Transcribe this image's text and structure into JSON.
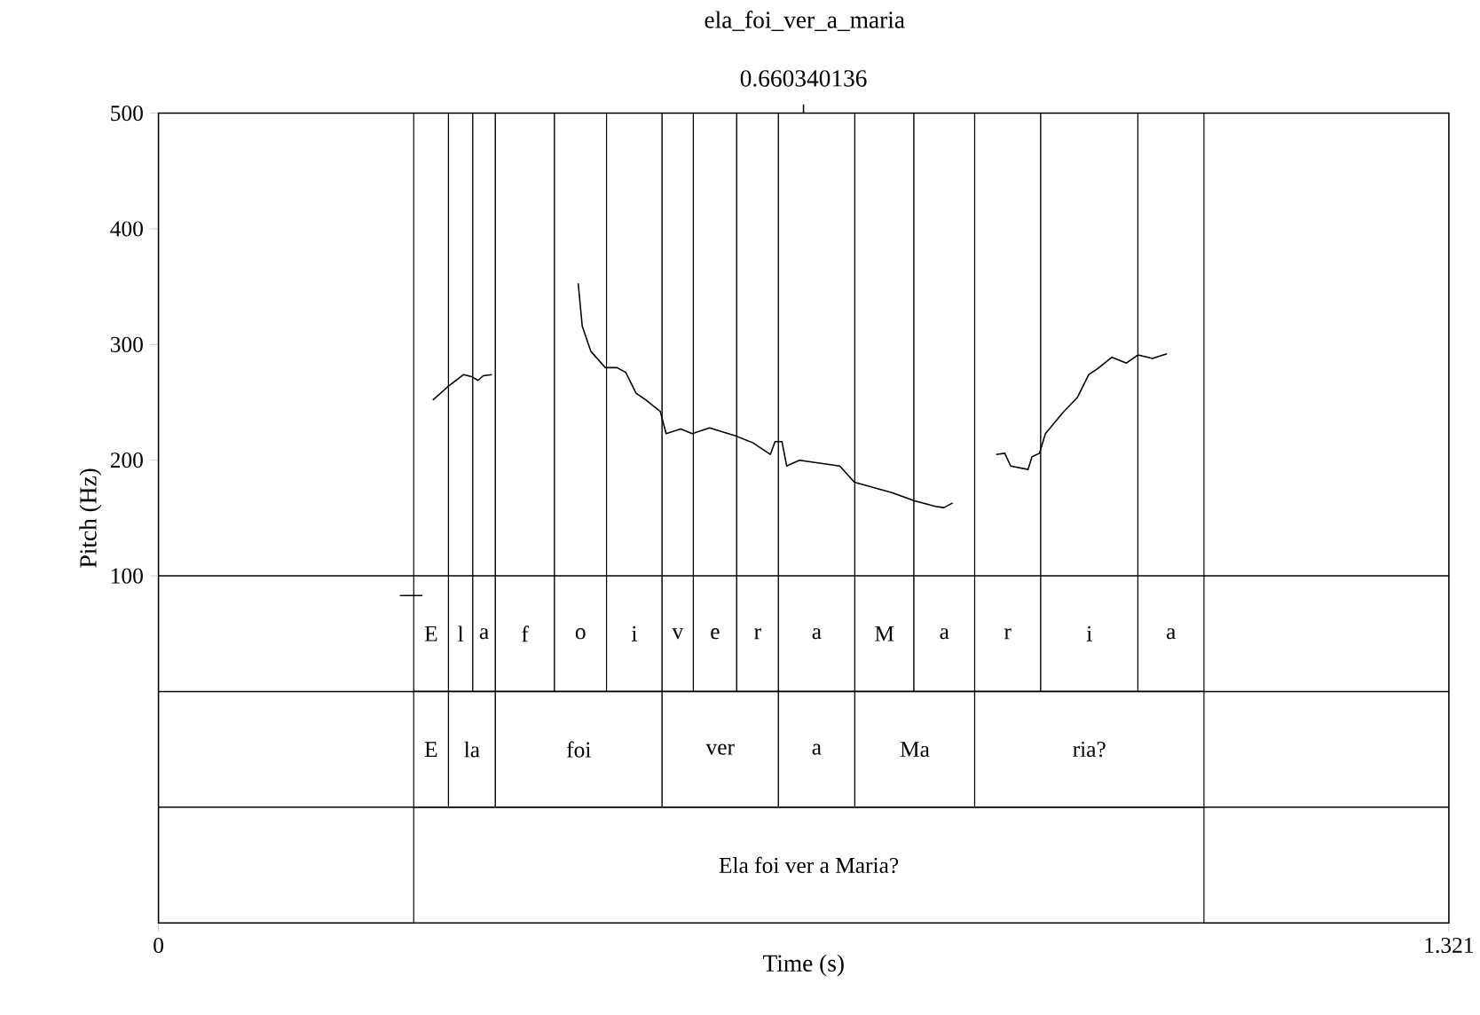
{
  "chart_data": {
    "type": "line",
    "title": "ela_foi_ver_a_maria",
    "xlabel": "Time (s)",
    "ylabel": "Pitch (Hz)",
    "xlim": [
      0,
      1.321
    ],
    "xticks": [
      0,
      1.321
    ],
    "ylim": [
      -200,
      500
    ],
    "yticks": [
      100,
      200,
      300,
      400,
      500
    ],
    "series": [
      {
        "color": "#000000",
        "line_style": "solid",
        "x": [
          0.2471,
          0.2702,
          0.275,
          0.2809,
          0.2969,
          0.3124,
          0.3213,
          0.3271,
          0.3325,
          0.3414,
          0.36,
          0.4297,
          0.4338,
          0.4427,
          0.4575,
          0.4694,
          0.4783,
          0.4889,
          0.4991,
          0.5138,
          0.5197,
          0.5347,
          0.5464,
          0.5641,
          0.5908,
          0.6086,
          0.6264,
          0.6312,
          0.6383,
          0.6431,
          0.6561,
          0.6975,
          0.7124,
          0.7508,
          0.7734,
          0.7953,
          0.8041,
          0.813,
          0.83,
          0.8575,
          0.8664,
          0.8724,
          0.8902,
          0.8943,
          0.9019,
          0.908,
          0.9257,
          0.9405,
          0.9524,
          0.9613,
          0.9761,
          0.9909,
          1.0027,
          1.0175,
          1.0324
        ],
        "values": [
          83,
          83,
          null,
          252,
          264,
          274,
          272,
          269,
          273,
          274,
          null,
          353,
          316,
          294,
          280,
          280,
          276,
          258,
          252,
          242,
          223,
          227,
          223,
          228,
          221,
          215,
          205,
          216,
          216,
          195,
          200,
          195,
          181,
          172,
          165,
          160,
          159,
          163,
          null,
          205,
          206,
          195,
          192,
          203,
          206,
          223,
          241,
          254,
          274,
          279,
          289,
          284,
          291,
          288,
          292
        ]
      }
    ],
    "ref_lines": [
      {
        "axis": "y",
        "value": 100
      },
      {
        "axis": "y",
        "value": 0
      },
      {
        "axis": "y",
        "value": -100
      },
      {
        "axis": "x",
        "value": 0.660340136,
        "label": "0.660340136"
      }
    ],
    "bands": [
      {
        "axis": "x",
        "from": 0.2613,
        "to": 0.2969,
        "label": "E",
        "color": "#ffffff"
      },
      {
        "axis": "x",
        "from": 0.2969,
        "to": 0.3218,
        "label": "l",
        "color": "#ffffff"
      },
      {
        "axis": "x",
        "from": 0.3218,
        "to": 0.3449,
        "label": "a",
        "color": "#ffffff"
      },
      {
        "axis": "x",
        "from": 0.3449,
        "to": 0.4054,
        "label": "f",
        "color": "#ffffff"
      },
      {
        "axis": "x",
        "from": 0.4054,
        "to": 0.4587,
        "label": "o",
        "color": "#ffffff"
      },
      {
        "axis": "x",
        "from": 0.4587,
        "to": 0.5156,
        "label": "i",
        "color": "#ffffff"
      },
      {
        "axis": "x",
        "from": 0.5156,
        "to": 0.5476,
        "label": "v",
        "color": "#ffffff"
      },
      {
        "axis": "x",
        "from": 0.5476,
        "to": 0.592,
        "label": "e",
        "color": "#ffffff"
      },
      {
        "axis": "x",
        "from": 0.592,
        "to": 0.6347,
        "label": "r",
        "color": "#ffffff"
      },
      {
        "axis": "x",
        "from": 0.6347,
        "to": 0.7129,
        "label": "a",
        "color": "#ffffff"
      },
      {
        "axis": "x",
        "from": 0.7129,
        "to": 0.7734,
        "label": "M",
        "color": "#ffffff"
      },
      {
        "axis": "x",
        "from": 0.7734,
        "to": 0.8356,
        "label": "a",
        "color": "#ffffff"
      },
      {
        "axis": "x",
        "from": 0.8356,
        "to": 0.9032,
        "label": "r",
        "color": "#ffffff"
      },
      {
        "axis": "x",
        "from": 0.9032,
        "to": 1.0027,
        "label": "i",
        "color": "#ffffff"
      },
      {
        "axis": "x",
        "from": 1.0027,
        "to": 1.0703,
        "label": "a",
        "color": "#ffffff"
      },
      {
        "axis": "x",
        "from": 0.2613,
        "to": 0.2969,
        "label": "E",
        "color": "#ffffff"
      },
      {
        "axis": "x",
        "from": 0.2969,
        "to": 0.3449,
        "label": "la",
        "color": "#ffffff"
      },
      {
        "axis": "x",
        "from": 0.3449,
        "to": 0.5156,
        "label": "foi",
        "color": "#ffffff"
      },
      {
        "axis": "x",
        "from": 0.5156,
        "to": 0.6347,
        "label": "ver",
        "color": "#ffffff"
      },
      {
        "axis": "x",
        "from": 0.6347,
        "to": 0.7129,
        "label": "a",
        "color": "#ffffff"
      },
      {
        "axis": "x",
        "from": 0.7129,
        "to": 0.8356,
        "label": "Ma",
        "color": "#ffffff"
      },
      {
        "axis": "x",
        "from": 0.8356,
        "to": 1.0703,
        "label": "ria?",
        "color": "#ffffff"
      },
      {
        "axis": "x",
        "from": 0.2613,
        "to": 1.0703,
        "label": "Ela foi ver a Maria?",
        "color": "#ffffff"
      }
    ]
  }
}
